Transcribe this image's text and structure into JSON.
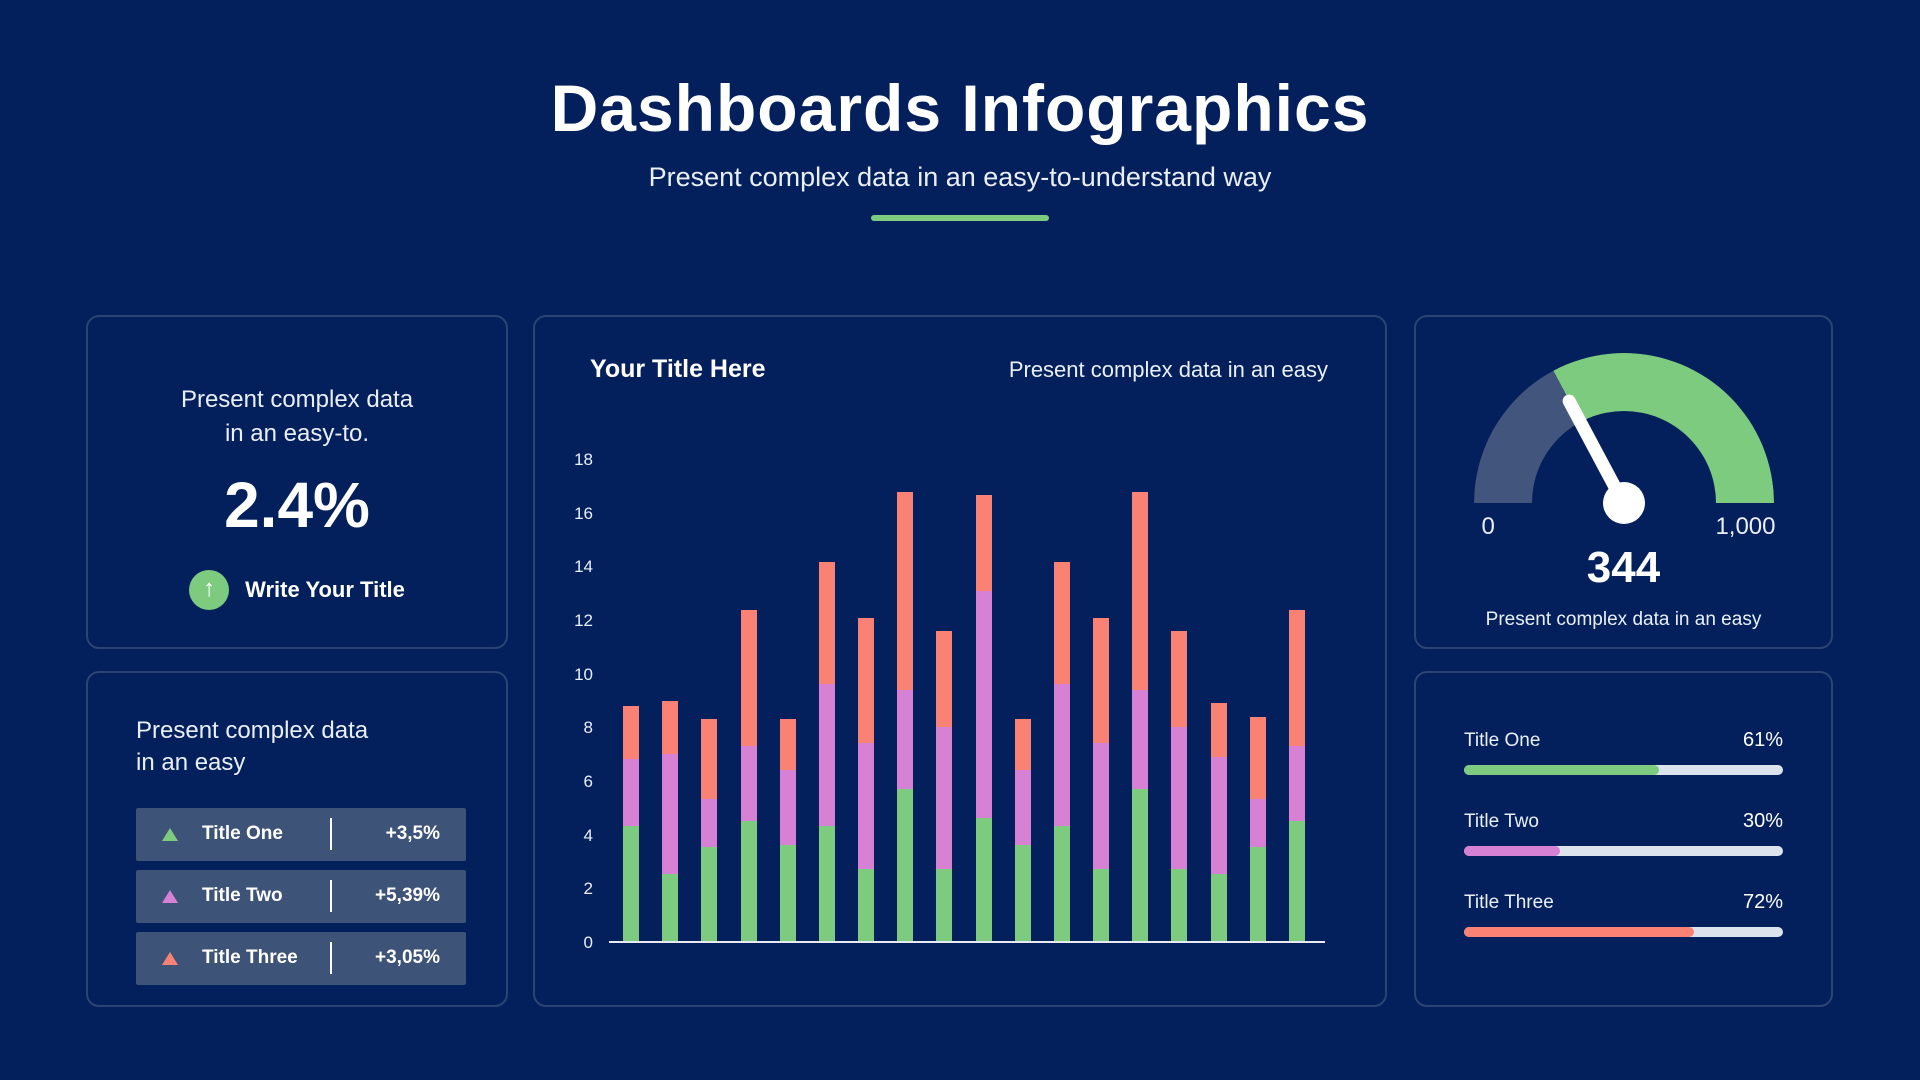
{
  "page": {
    "title": "Dashboards Infographics",
    "subtitle": "Present complex data in an easy-to-understand way"
  },
  "colors": {
    "background": "#03205C",
    "card_border": "#2C4474",
    "row_slate": "#3D5377",
    "gauge_slate": "#41557D",
    "green": "#7CCB7E",
    "purple": "#D681D4",
    "salmon": "#FA8274",
    "progress_track": "#DCE3ED",
    "axis_baseline": "#E8EBF2"
  },
  "stat_card": {
    "description_line1": "Present complex data",
    "description_line2": "in an easy-to.",
    "value": "2.4%",
    "badge_icon": "up-arrow-icon",
    "badge_label": "Write Your Title"
  },
  "list_card": {
    "heading_line1": "Present complex data",
    "heading_line2": "in an easy",
    "items": [
      {
        "label": "Title One",
        "value": "+3,5%",
        "color": "#7CCB7E"
      },
      {
        "label": "Title Two",
        "value": "+5,39%",
        "color": "#D681D4"
      },
      {
        "label": "Title Three",
        "value": "+3,05%",
        "color": "#FA8274"
      }
    ]
  },
  "chart_card": {
    "title": "Your Title Here",
    "subtitle": "Present complex data in an easy"
  },
  "chart_data": {
    "type": "bar",
    "stacked": true,
    "title": "Your Title Here",
    "subtitle": "Present complex data in an easy",
    "xlabel": "",
    "ylabel": "",
    "ylim": [
      0,
      18
    ],
    "yticks": [
      0,
      2,
      4,
      6,
      8,
      10,
      12,
      14,
      16,
      18
    ],
    "x_tick_labels": "none",
    "grid": "off",
    "legend": "none",
    "bar_count": 18,
    "series": [
      {
        "name": "green-segment",
        "color": "#7CCB7E",
        "values": [
          4.3,
          2.5,
          3.5,
          4.5,
          3.6,
          4.3,
          2.7,
          5.7,
          2.7,
          4.6,
          3.6,
          4.3,
          2.7,
          5.7,
          2.7,
          2.5,
          3.5,
          4.5
        ]
      },
      {
        "name": "purple-segment",
        "color": "#D681D4",
        "values": [
          2.5,
          4.5,
          1.8,
          2.8,
          2.8,
          5.3,
          4.7,
          3.7,
          5.3,
          8.5,
          2.8,
          5.3,
          4.7,
          3.7,
          5.3,
          4.4,
          1.8,
          2.8
        ]
      },
      {
        "name": "salmon-segment",
        "color": "#FA8274",
        "values": [
          2.0,
          2.0,
          3.0,
          5.1,
          1.9,
          4.6,
          4.7,
          7.4,
          3.6,
          3.6,
          1.9,
          4.6,
          4.7,
          7.4,
          3.6,
          2.0,
          3.1,
          5.1
        ]
      }
    ]
  },
  "gauge_card": {
    "min_label": "0",
    "max_label": "1,000",
    "value": 344,
    "max": 1000,
    "value_label": "344",
    "caption": "Present complex data in an easy",
    "filled_color": "#41557D",
    "remainder_color": "#7CCB7E"
  },
  "progress_card": {
    "items": [
      {
        "label": "Title One",
        "percent": 61,
        "value_label": "61%",
        "color": "#7CCB7E"
      },
      {
        "label": "Title Two",
        "percent": 30,
        "value_label": "30%",
        "color": "#D681D4"
      },
      {
        "label": "Title Three",
        "percent": 72,
        "value_label": "72%",
        "color": "#FA8274"
      }
    ]
  }
}
